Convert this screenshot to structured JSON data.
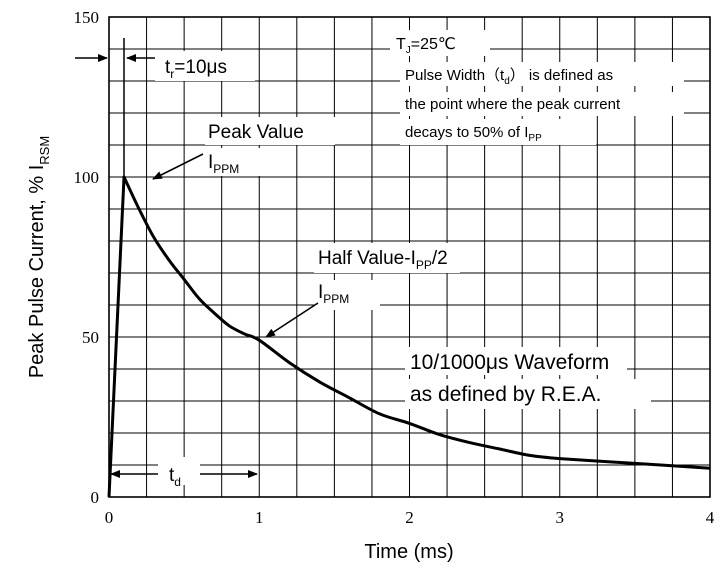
{
  "chart_data": {
    "type": "line",
    "title": "",
    "xlabel": "Time (ms)",
    "ylabel": {
      "main": "Peak Pulse Current, % I",
      "sub": "RSM"
    },
    "xlim": [
      0,
      4
    ],
    "ylim": [
      0,
      150
    ],
    "xticks": [
      "0",
      "1",
      "2",
      "3",
      "4"
    ],
    "yticks": [
      "0",
      "50",
      "100",
      "150"
    ],
    "grid": true,
    "series": [
      {
        "name": "",
        "x": [
          0,
          0.1,
          0.2,
          0.3,
          0.4,
          0.5,
          0.6,
          0.7,
          0.8,
          0.9,
          1.0,
          1.2,
          1.4,
          1.6,
          1.8,
          2.0,
          2.2,
          2.4,
          2.6,
          2.8,
          3.0,
          3.5,
          4.0
        ],
        "y": [
          0,
          100,
          90,
          81,
          74,
          68,
          62,
          57.5,
          53.5,
          51,
          49,
          42,
          36,
          31,
          26,
          23,
          19.5,
          17,
          15,
          13,
          12,
          10.5,
          9
        ]
      }
    ],
    "annotations": {
      "tr": {
        "t": "t",
        "sub": "r",
        "rest": "=10μs"
      },
      "peak_label": "Peak Value",
      "peak_ippm": {
        "main": "I",
        "sub": "PPM"
      },
      "half_label": {
        "pre": "Half Value-I",
        "sub": "PP",
        "post": "/2"
      },
      "half_ippm": {
        "main": "I",
        "sub": "PPM"
      },
      "waveform_line1": "10/1000μs Waveform",
      "waveform_line2": "as defined by R.E.A.",
      "td": {
        "t": "t",
        "sub": "d"
      },
      "info_tj": {
        "t": "T",
        "sub": "J",
        "rest": "=25℃"
      },
      "info_line1": {
        "pre": "Pulse Width（t",
        "sub": "d",
        "post": "） is defined as"
      },
      "info_line2": "the point where the peak current",
      "info_line3": {
        "pre": "decays to 50% of I",
        "sub": "PP"
      }
    }
  }
}
